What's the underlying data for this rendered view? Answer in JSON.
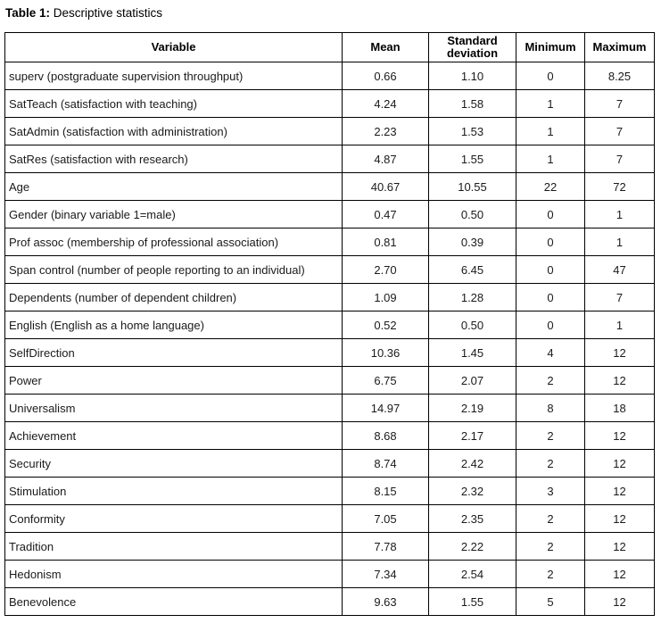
{
  "title": {
    "label": "Table 1:",
    "text": " Descriptive statistics"
  },
  "table": {
    "headers": [
      "Variable",
      "Mean",
      "Standard deviation",
      "Minimum",
      "Maximum"
    ],
    "rows": [
      [
        "superv (postgraduate supervision throughput)",
        "0.66",
        "1.10",
        "0",
        "8.25"
      ],
      [
        "SatTeach (satisfaction with teaching)",
        "4.24",
        "1.58",
        "1",
        "7"
      ],
      [
        "SatAdmin (satisfaction with administration)",
        "2.23",
        "1.53",
        "1",
        "7"
      ],
      [
        "SatRes (satisfaction with research)",
        "4.87",
        "1.55",
        "1",
        "7"
      ],
      [
        "Age",
        "40.67",
        "10.55",
        "22",
        "72"
      ],
      [
        "Gender (binary variable 1=male)",
        "0.47",
        "0.50",
        "0",
        "1"
      ],
      [
        "Prof assoc (membership of professional association)",
        "0.81",
        "0.39",
        "0",
        "1"
      ],
      [
        "Span control (number of people reporting to an individual)",
        "2.70",
        "6.45",
        "0",
        "47"
      ],
      [
        "Dependents (number of dependent children)",
        "1.09",
        "1.28",
        "0",
        "7"
      ],
      [
        "English (English as a home language)",
        "0.52",
        "0.50",
        "0",
        "1"
      ],
      [
        "SelfDirection",
        "10.36",
        "1.45",
        "4",
        "12"
      ],
      [
        "Power",
        "6.75",
        "2.07",
        "2",
        "12"
      ],
      [
        "Universalism",
        "14.97",
        "2.19",
        "8",
        "18"
      ],
      [
        "Achievement",
        "8.68",
        "2.17",
        "2",
        "12"
      ],
      [
        "Security",
        "8.74",
        "2.42",
        "2",
        "12"
      ],
      [
        "Stimulation",
        "8.15",
        "2.32",
        "3",
        "12"
      ],
      [
        "Conformity",
        "7.05",
        "2.35",
        "2",
        "12"
      ],
      [
        "Tradition",
        "7.78",
        "2.22",
        "2",
        "12"
      ],
      [
        "Hedonism",
        "7.34",
        "2.54",
        "2",
        "12"
      ],
      [
        "Benevolence",
        "9.63",
        "1.55",
        "5",
        "12"
      ]
    ]
  }
}
